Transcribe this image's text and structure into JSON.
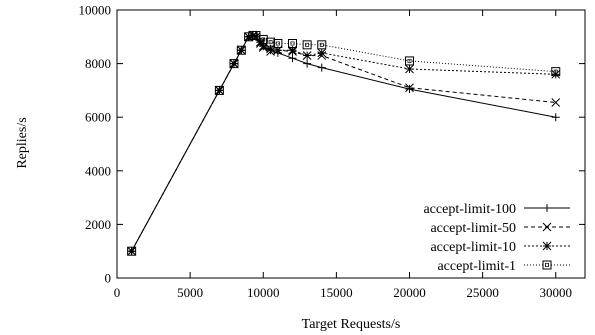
{
  "chart_data": {
    "type": "line",
    "title": "",
    "xlabel": "Target Requests/s",
    "ylabel": "Replies/s",
    "xlim": [
      0,
      32000
    ],
    "ylim": [
      0,
      10000
    ],
    "x_ticks": [
      0,
      5000,
      10000,
      15000,
      20000,
      25000,
      30000
    ],
    "y_ticks": [
      0,
      2000,
      4000,
      6000,
      8000,
      10000
    ],
    "grid": false,
    "legend_position": "bottom-right",
    "series": [
      {
        "name": "accept-limit-100",
        "marker": "plus",
        "line_style": "solid",
        "points": [
          [
            1000,
            1000
          ],
          [
            7000,
            7000
          ],
          [
            8000,
            8000
          ],
          [
            8500,
            8500
          ],
          [
            9000,
            9000
          ],
          [
            9300,
            9050
          ],
          [
            9500,
            9000
          ],
          [
            9800,
            8800
          ],
          [
            10000,
            8650
          ],
          [
            10500,
            8500
          ],
          [
            11000,
            8400
          ],
          [
            12000,
            8200
          ],
          [
            13000,
            8000
          ],
          [
            14000,
            7850
          ],
          [
            20000,
            7050
          ],
          [
            30000,
            6000
          ]
        ]
      },
      {
        "name": "accept-limit-50",
        "marker": "x",
        "line_style": "dashed",
        "points": [
          [
            1000,
            1000
          ],
          [
            7000,
            7000
          ],
          [
            8000,
            8000
          ],
          [
            8500,
            8500
          ],
          [
            9000,
            9000
          ],
          [
            9300,
            9050
          ],
          [
            9500,
            9000
          ],
          [
            9800,
            8750
          ],
          [
            10000,
            8600
          ],
          [
            10500,
            8450
          ],
          [
            11000,
            8500
          ],
          [
            12000,
            8450
          ],
          [
            13000,
            8300
          ],
          [
            14000,
            8300
          ],
          [
            20000,
            7100
          ],
          [
            30000,
            6550
          ]
        ]
      },
      {
        "name": "accept-limit-10",
        "marker": "star",
        "line_style": "dotted-dense",
        "points": [
          [
            1000,
            1000
          ],
          [
            7000,
            7000
          ],
          [
            8000,
            8000
          ],
          [
            8500,
            8500
          ],
          [
            9000,
            9000
          ],
          [
            9300,
            9050
          ],
          [
            9500,
            9000
          ],
          [
            9800,
            8800
          ],
          [
            10000,
            8650
          ],
          [
            10500,
            8550
          ],
          [
            11000,
            8500
          ],
          [
            12000,
            8500
          ],
          [
            13000,
            8300
          ],
          [
            14000,
            8400
          ],
          [
            20000,
            7800
          ],
          [
            30000,
            7600
          ]
        ]
      },
      {
        "name": "accept-limit-1",
        "marker": "square",
        "line_style": "dotted",
        "points": [
          [
            1000,
            1000
          ],
          [
            7000,
            7000
          ],
          [
            8000,
            8000
          ],
          [
            8500,
            8500
          ],
          [
            9000,
            9000
          ],
          [
            9300,
            9050
          ],
          [
            9500,
            9050
          ],
          [
            10000,
            8900
          ],
          [
            10500,
            8800
          ],
          [
            11000,
            8750
          ],
          [
            12000,
            8750
          ],
          [
            13000,
            8700
          ],
          [
            14000,
            8700
          ],
          [
            20000,
            8100
          ],
          [
            30000,
            7700
          ]
        ]
      }
    ]
  }
}
